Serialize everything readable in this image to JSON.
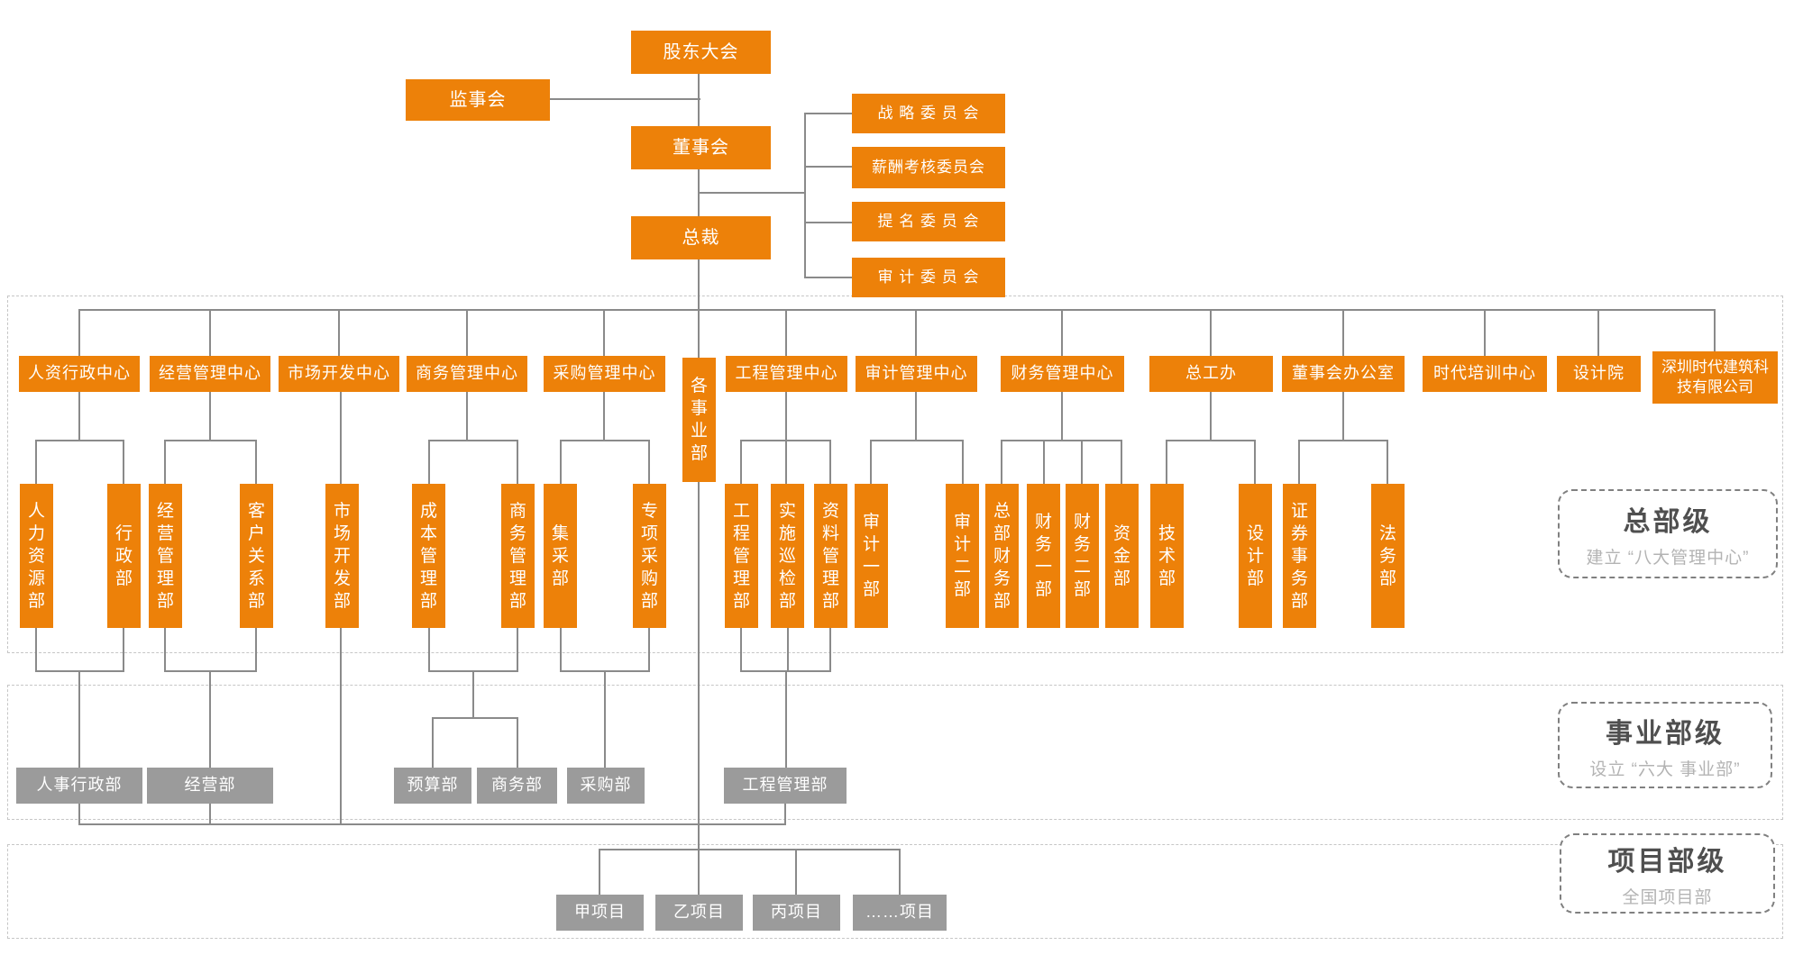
{
  "colors": {
    "primary_orange": "#ED8109",
    "division_gray": "#9B9B9B",
    "connector_gray": "#8A8A8A"
  },
  "governance": {
    "shareholders_meeting": "股东大会",
    "supervisory_board": "监事会",
    "board_of_directors": "董事会",
    "president": "总裁"
  },
  "committees": [
    {
      "label": "战 略 委 员 会"
    },
    {
      "label": "薪酬考核委员会"
    },
    {
      "label": "提 名 委 员 会"
    },
    {
      "label": "审 计 委 员 会"
    }
  ],
  "centers": [
    {
      "label": "人资行政中心"
    },
    {
      "label": "经营管理中心"
    },
    {
      "label": "市场开发中心"
    },
    {
      "label": "商务管理中心"
    },
    {
      "label": "采购管理中心"
    },
    {
      "label": "各事业部"
    },
    {
      "label": "工程管理中心"
    },
    {
      "label": "审计管理中心"
    },
    {
      "label": "财务管理中心"
    },
    {
      "label": "总工办"
    },
    {
      "label": "董事会办公室"
    },
    {
      "label": "时代培训中心"
    },
    {
      "label": "设计院"
    },
    {
      "label": "深圳时代建筑科技有限公司"
    }
  ],
  "departments": [
    {
      "label": "人力资源部"
    },
    {
      "label": "行政部"
    },
    {
      "label": "经营管理部"
    },
    {
      "label": "客户关系部"
    },
    {
      "label": "市场开发部"
    },
    {
      "label": "成本管理部"
    },
    {
      "label": "商务管理部"
    },
    {
      "label": "集采部"
    },
    {
      "label": "专项采购部"
    },
    {
      "label": "工程管理部"
    },
    {
      "label": "实施巡检部"
    },
    {
      "label": "资料管理部"
    },
    {
      "label": "审计一部"
    },
    {
      "label": "审计二部"
    },
    {
      "label": "总部财务部"
    },
    {
      "label": "财务一部"
    },
    {
      "label": "财务二部"
    },
    {
      "label": "资金部"
    },
    {
      "label": "技术部"
    },
    {
      "label": "设计部"
    },
    {
      "label": "证券事务部"
    },
    {
      "label": "法务部"
    }
  ],
  "division_departments": [
    {
      "label": "人事行政部"
    },
    {
      "label": "经营部"
    },
    {
      "label": "预算部"
    },
    {
      "label": "商务部"
    },
    {
      "label": "采购部"
    },
    {
      "label": "工程管理部"
    }
  ],
  "projects": [
    {
      "label": "甲项目"
    },
    {
      "label": "乙项目"
    },
    {
      "label": "丙项目"
    },
    {
      "label": "……项目"
    }
  ],
  "level_labels": [
    {
      "title": "总部级",
      "subtitle": "建立 “八大管理中心”"
    },
    {
      "title": "事业部级",
      "subtitle": "设立 “六大 事业部”"
    },
    {
      "title": "项目部级",
      "subtitle": "全国项目部"
    }
  ]
}
